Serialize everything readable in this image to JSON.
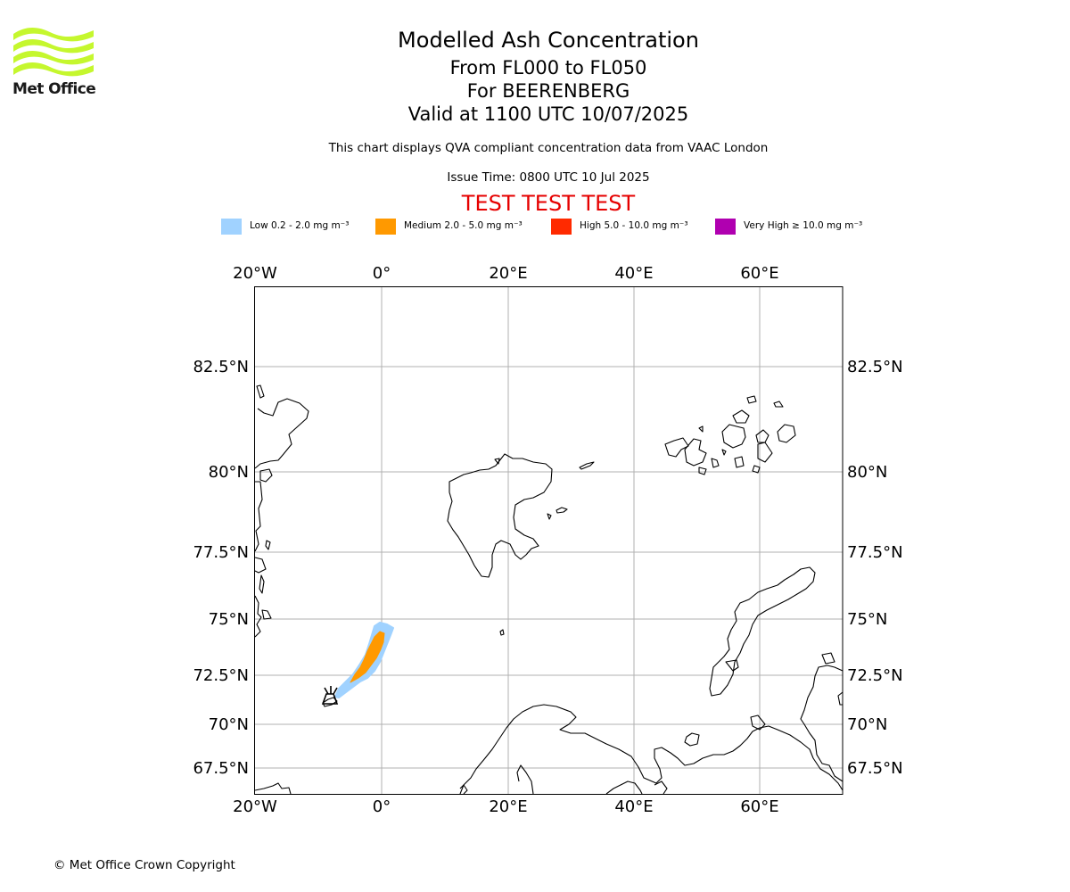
{
  "logo": {
    "text": "Met Office",
    "icon": "met-office-wave-logo"
  },
  "title": {
    "line1": "Modelled Ash Concentration",
    "line2": "From FL000 to FL050",
    "line3": "For BEERENBERG",
    "line4": "Valid at 1100 UTC 10/07/2025"
  },
  "subtitle": "This chart displays QVA compliant concentration data from VAAC London",
  "issue_time": "Issue Time: 0800 UTC 10 Jul 2025",
  "test_banner": "TEST TEST TEST",
  "legend": [
    {
      "label": "Low 0.2 - 2.0 mg m⁻³",
      "color": "#a0d2ff"
    },
    {
      "label": "Medium 2.0 - 5.0 mg m⁻³",
      "color": "#ff9900"
    },
    {
      "label": "High 5.0 - 10.0 mg m⁻³",
      "color": "#ff2a00"
    },
    {
      "label": "Very High  ≥  10.0 mg m⁻³",
      "color": "#b000b0"
    }
  ],
  "map": {
    "lon_ticks": [
      "20°W",
      "0°",
      "20°E",
      "40°E",
      "60°E"
    ],
    "lat_ticks": [
      "82.5°N",
      "80°N",
      "77.5°N",
      "75°N",
      "72.5°N",
      "70°N",
      "67.5°N"
    ],
    "grid": true,
    "volcano_marker": "volcano-icon",
    "ash_plume_levels": [
      "low",
      "medium"
    ]
  },
  "copyright": "© Met Office Crown Copyright"
}
